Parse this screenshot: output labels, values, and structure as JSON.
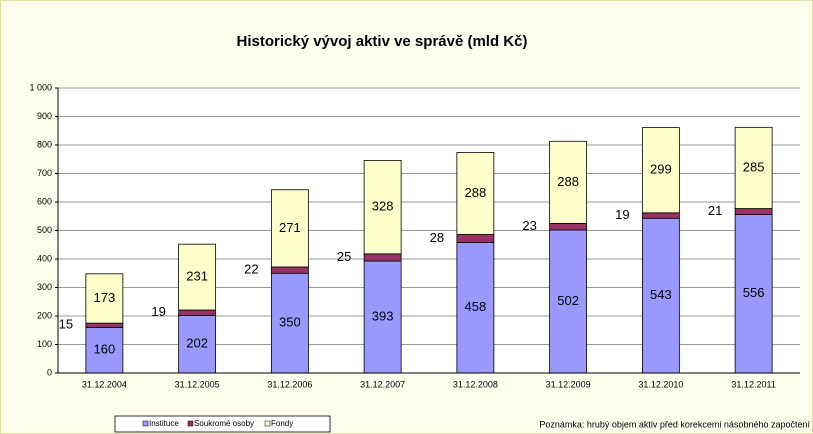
{
  "chart_data": {
    "type": "stacked-bar",
    "title": "Historický vývoj aktiv ve správě (mld Kč)",
    "categories": [
      "31.12.2004",
      "31.12.2005",
      "31.12.2006",
      "31.12.2007",
      "31.12.2008",
      "31.12.2009",
      "31.12.2010",
      "31.12.2011"
    ],
    "series": [
      {
        "name": "Instituce",
        "color": "#9999ff",
        "values": [
          160,
          202,
          350,
          393,
          458,
          502,
          543,
          556
        ]
      },
      {
        "name": "Soukromé osoby",
        "color": "#993366",
        "values": [
          15,
          19,
          22,
          25,
          28,
          23,
          19,
          21
        ]
      },
      {
        "name": "Fondy",
        "color": "#ffffcc",
        "values": [
          173,
          231,
          271,
          328,
          288,
          288,
          299,
          285
        ]
      }
    ],
    "ylim": [
      0,
      1000
    ],
    "yticks": [
      0,
      100,
      200,
      300,
      400,
      500,
      600,
      700,
      800,
      900,
      {
        "value": 1000,
        "label": "1 000"
      }
    ],
    "grid": true,
    "legend": "bottom",
    "annotation": "Poznámka: hrubý objem aktiv před korekcemi násobného započtení"
  }
}
